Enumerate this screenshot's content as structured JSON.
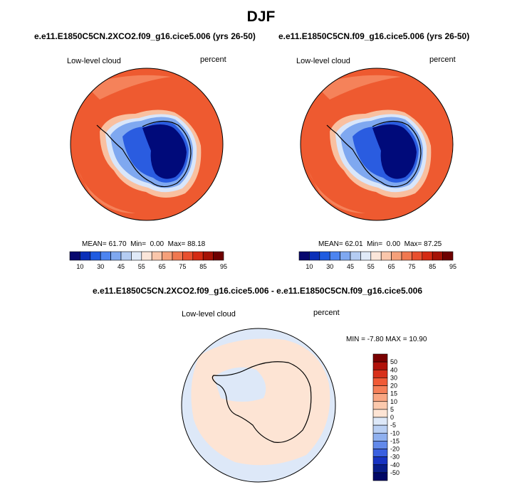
{
  "season": "DJF",
  "panels": [
    {
      "title": "e.e11.E1850C5CN.2XCO2.f09_g16.cice5.006 (yrs 26-50)",
      "variable": "Low-level cloud",
      "units": "percent",
      "stats": {
        "mean_label": "MEAN=",
        "mean": "61.70",
        "min_label": "Min=",
        "min": "0.00",
        "max_label": "Max=",
        "max": "88.18"
      }
    },
    {
      "title": "e.e11.E1850C5CN.f09_g16.cice5.006 (yrs 26-50)",
      "variable": "Low-level cloud",
      "units": "percent",
      "stats": {
        "mean_label": "MEAN=",
        "mean": "62.01",
        "min_label": "Min=",
        "min": "0.00",
        "max_label": "Max=",
        "max": "87.25"
      }
    }
  ],
  "diff_panel": {
    "title": "e.e11.E1850C5CN.2XCO2.f09_g16.cice5.006 - e.e11.E1850C5CN.f09_g16.cice5.006",
    "variable": "Low-level cloud",
    "units": "percent",
    "stats_text": "MIN = -7.80 MAX = 10.90"
  },
  "colorbar_labels": [
    "10",
    "30",
    "45",
    "55",
    "65",
    "75",
    "85",
    "95"
  ],
  "colorbar_colors": [
    "#08086e",
    "#0a2fb8",
    "#1f5ce0",
    "#4c84f0",
    "#7fa8f0",
    "#b4ccf2",
    "#e0eaf8",
    "#fbe6da",
    "#f9c6ab",
    "#f5a07a",
    "#f07850",
    "#e8502e",
    "#d42a12",
    "#a51205",
    "#6e0000"
  ],
  "diff_colorbar_labels": [
    "50",
    "40",
    "30",
    "20",
    "15",
    "10",
    "5",
    "0",
    "-5",
    "-10",
    "-15",
    "-20",
    "-30",
    "-40",
    "-50"
  ],
  "diff_colorbar_colors": [
    "#7a0000",
    "#b0120a",
    "#d8301a",
    "#f05a36",
    "#f57f58",
    "#f9a682",
    "#fbc9ad",
    "#fde4d4",
    "#dde8f8",
    "#b9cff3",
    "#8fb0ef",
    "#6289ea",
    "#3a60e0",
    "#1733c2",
    "#081d8a",
    "#000766"
  ],
  "map_colors": {
    "cloud_high": "#ee5a30",
    "cloud_mid": "#f5825a",
    "cloud_low_band": "#f9c0a0",
    "ice_edge": "#d9e6fa",
    "ice_light": "#7fa8f0",
    "ice_mid": "#2a5ce0",
    "ice_dark": "#000a7a",
    "diff_pos": "#fde4d4",
    "diff_neg": "#dde8f8"
  }
}
